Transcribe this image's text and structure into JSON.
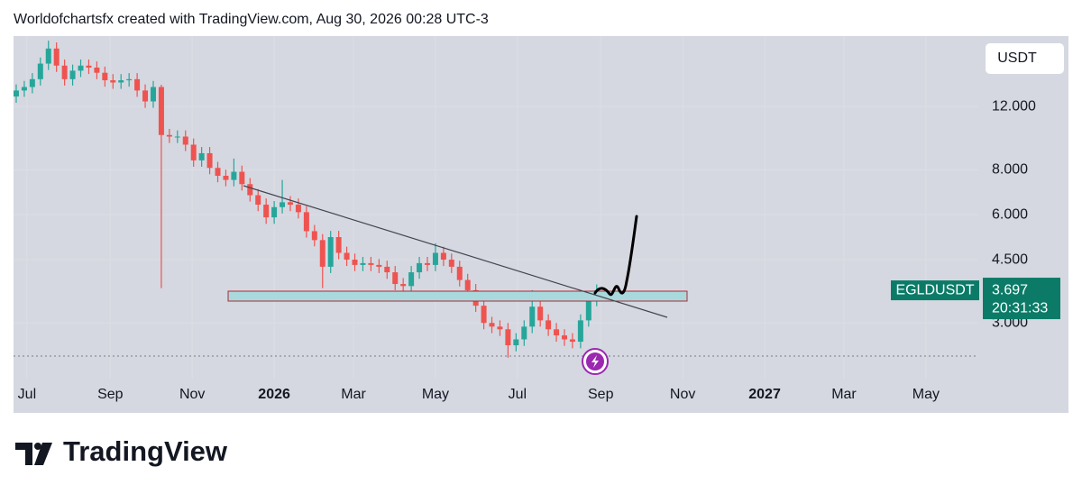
{
  "chart_data": {
    "type": "candlestick",
    "title": "Worldofchartsfx created with TradingView.com, Aug 30, 2026 00:28 UTC-3",
    "symbol": "EGLDUSDT",
    "currency": "USDT",
    "last_price": 3.697,
    "countdown": "20:31:33",
    "up_color": "#26a69a",
    "down_color": "#ef5350",
    "log_scale": true,
    "grid": true,
    "xlim": [
      -10,
      708
    ],
    "xticks": [
      {
        "value": 0,
        "label": "Jul"
      },
      {
        "value": 62,
        "label": "Sep"
      },
      {
        "value": 123,
        "label": "Nov"
      },
      {
        "value": 184,
        "label": "2026"
      },
      {
        "value": 243,
        "label": "Mar"
      },
      {
        "value": 304,
        "label": "May"
      },
      {
        "value": 365,
        "label": "Jul"
      },
      {
        "value": 427,
        "label": "Sep"
      },
      {
        "value": 488,
        "label": "Nov"
      },
      {
        "value": 549,
        "label": "2027"
      },
      {
        "value": 608,
        "label": "Mar"
      },
      {
        "value": 669,
        "label": "May"
      }
    ],
    "ylim": [
      2.1,
      18.85
    ],
    "yticks": [
      {
        "value": 3,
        "label": "3.000"
      },
      {
        "value": 4.5,
        "label": "4.500"
      },
      {
        "value": 6,
        "label": "6.000"
      },
      {
        "value": 8,
        "label": "8.000"
      },
      {
        "value": 12,
        "label": "12.000"
      }
    ],
    "x": [
      -8,
      -2,
      4,
      10,
      16,
      22,
      28,
      34,
      40,
      46,
      52,
      58,
      64,
      70,
      76,
      82,
      88,
      94,
      100,
      106,
      112,
      118,
      124,
      130,
      136,
      142,
      148,
      154,
      160,
      166,
      172,
      178,
      184,
      190,
      196,
      202,
      208,
      214,
      220,
      226,
      232,
      238,
      244,
      250,
      256,
      262,
      268,
      274,
      280,
      286,
      292,
      298,
      304,
      310,
      316,
      322,
      328,
      334,
      340,
      346,
      352,
      358,
      364,
      370,
      376,
      382,
      388,
      394,
      400,
      406,
      412,
      418,
      424
    ],
    "open": [
      12.8,
      13.3,
      13.6,
      14.3,
      15.8,
      17.4,
      15.6,
      14.3,
      15.1,
      15.6,
      15.4,
      14.9,
      14.2,
      14.0,
      14.2,
      14.3,
      13.3,
      12.4,
      13.6,
      10.0,
      9.9,
      9.9,
      9.4,
      8.5,
      8.9,
      8.1,
      7.7,
      7.5,
      7.9,
      7.3,
      6.8,
      6.4,
      5.9,
      6.3,
      6.5,
      6.4,
      6.1,
      5.4,
      5.1,
      4.3,
      5.2,
      4.7,
      4.5,
      4.35,
      4.4,
      4.35,
      4.3,
      4.15,
      3.85,
      3.8,
      4.15,
      4.4,
      4.35,
      4.7,
      4.5,
      4.3,
      3.95,
      3.7,
      3.35,
      3.0,
      2.93,
      2.88,
      2.6,
      2.7,
      2.93,
      3.33,
      3.05,
      2.88,
      2.77,
      2.7,
      2.66,
      3.05,
      3.48
    ],
    "high": [
      13.83,
      14.14,
      14.87,
      16.43,
      18.3,
      18.1,
      16.22,
      15.7,
      16.22,
      16.22,
      16.02,
      15.5,
      14.77,
      14.77,
      14.87,
      14.87,
      13.83,
      14.14,
      13.8,
      10.4,
      10.3,
      10.3,
      9.78,
      9.26,
      9.26,
      8.42,
      8.01,
      8.6,
      8.22,
      7.59,
      7.07,
      6.66,
      6.55,
      7.5,
      6.76,
      6.66,
      6.34,
      5.62,
      5.3,
      5.41,
      5.41,
      4.89,
      4.68,
      4.58,
      4.58,
      4.52,
      4.47,
      4.32,
      4.0,
      4.32,
      4.58,
      4.58,
      5.0,
      4.89,
      4.68,
      4.47,
      4.11,
      3.85,
      3.48,
      3.12,
      3.05,
      3.0,
      2.81,
      3.05,
      3.7,
      3.46,
      3.17,
      3.0,
      2.88,
      2.81,
      3.17,
      3.62,
      3.84
    ],
    "low": [
      12.29,
      12.77,
      13.06,
      13.73,
      15.17,
      14.98,
      13.73,
      13.73,
      14.5,
      14.78,
      14.3,
      13.63,
      13.44,
      13.44,
      13.63,
      12.77,
      11.9,
      11.9,
      3.75,
      9.5,
      9.5,
      9.02,
      8.16,
      8.16,
      7.78,
      7.39,
      7.2,
      7.2,
      7.01,
      6.53,
      6.14,
      5.66,
      5.66,
      6.05,
      6.14,
      5.86,
      5.18,
      4.9,
      3.75,
      4.13,
      4.51,
      4.32,
      4.18,
      4.18,
      4.18,
      4.13,
      3.98,
      3.7,
      3.65,
      3.65,
      3.98,
      4.18,
      4.18,
      4.32,
      4.13,
      3.79,
      3.55,
      3.22,
      2.88,
      2.81,
      2.76,
      2.4,
      2.5,
      2.59,
      2.81,
      2.93,
      2.76,
      2.66,
      2.59,
      2.55,
      2.55,
      2.93,
      3.34
    ],
    "close": [
      13.3,
      13.6,
      14.3,
      15.8,
      17.4,
      15.6,
      14.3,
      15.1,
      15.6,
      15.4,
      14.9,
      14.2,
      14.0,
      14.2,
      14.3,
      13.3,
      12.4,
      13.6,
      10.0,
      9.9,
      9.9,
      9.4,
      8.5,
      8.9,
      8.1,
      7.7,
      7.5,
      7.9,
      7.3,
      6.8,
      6.4,
      5.9,
      6.3,
      6.5,
      6.4,
      6.1,
      5.4,
      5.1,
      4.3,
      5.2,
      4.7,
      4.5,
      4.35,
      4.4,
      4.35,
      4.3,
      4.15,
      3.85,
      3.8,
      4.15,
      4.4,
      4.35,
      4.7,
      4.5,
      4.3,
      3.95,
      3.7,
      3.35,
      3.0,
      2.93,
      2.88,
      2.6,
      2.7,
      2.93,
      3.33,
      3.05,
      2.88,
      2.77,
      2.7,
      2.66,
      3.05,
      3.48,
      3.697
    ]
  },
  "footer": {
    "brand": "TradingView"
  }
}
